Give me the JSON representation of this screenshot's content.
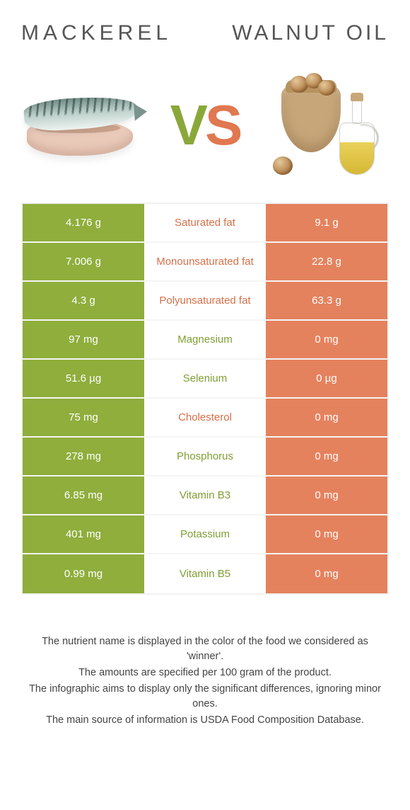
{
  "colors": {
    "left": "#8fae3c",
    "right": "#e5825e",
    "name_left": "#7f9e34",
    "name_right": "#d86f48",
    "title": "#555555",
    "footnote": "#444444",
    "border": "#f1f1f1",
    "bg": "#ffffff"
  },
  "header": {
    "left_title": "Mackerel",
    "right_title": "Walnut oil",
    "vs_v": "V",
    "vs_s": "S"
  },
  "rows": [
    {
      "name": "Saturated fat",
      "left": "4.176 g",
      "right": "9.1 g",
      "winner": "right"
    },
    {
      "name": "Monounsaturated fat",
      "left": "7.006 g",
      "right": "22.8 g",
      "winner": "right"
    },
    {
      "name": "Polyunsaturated fat",
      "left": "4.3 g",
      "right": "63.3 g",
      "winner": "right"
    },
    {
      "name": "Magnesium",
      "left": "97 mg",
      "right": "0 mg",
      "winner": "left"
    },
    {
      "name": "Selenium",
      "left": "51.6 µg",
      "right": "0 µg",
      "winner": "left"
    },
    {
      "name": "Cholesterol",
      "left": "75 mg",
      "right": "0 mg",
      "winner": "right"
    },
    {
      "name": "Phosphorus",
      "left": "278 mg",
      "right": "0 mg",
      "winner": "left"
    },
    {
      "name": "Vitamin B3",
      "left": "6.85 mg",
      "right": "0 mg",
      "winner": "left"
    },
    {
      "name": "Potassium",
      "left": "401 mg",
      "right": "0 mg",
      "winner": "left"
    },
    {
      "name": "Vitamin B5",
      "left": "0.99 mg",
      "right": "0 mg",
      "winner": "left"
    }
  ],
  "footnotes": [
    "The nutrient name is displayed in the color of the food we considered as 'winner'.",
    "The amounts are specified per 100 gram of the product.",
    "The infographic aims to display only the significant differences, ignoring minor ones.",
    "The main source of information is USDA Food Composition Database."
  ]
}
